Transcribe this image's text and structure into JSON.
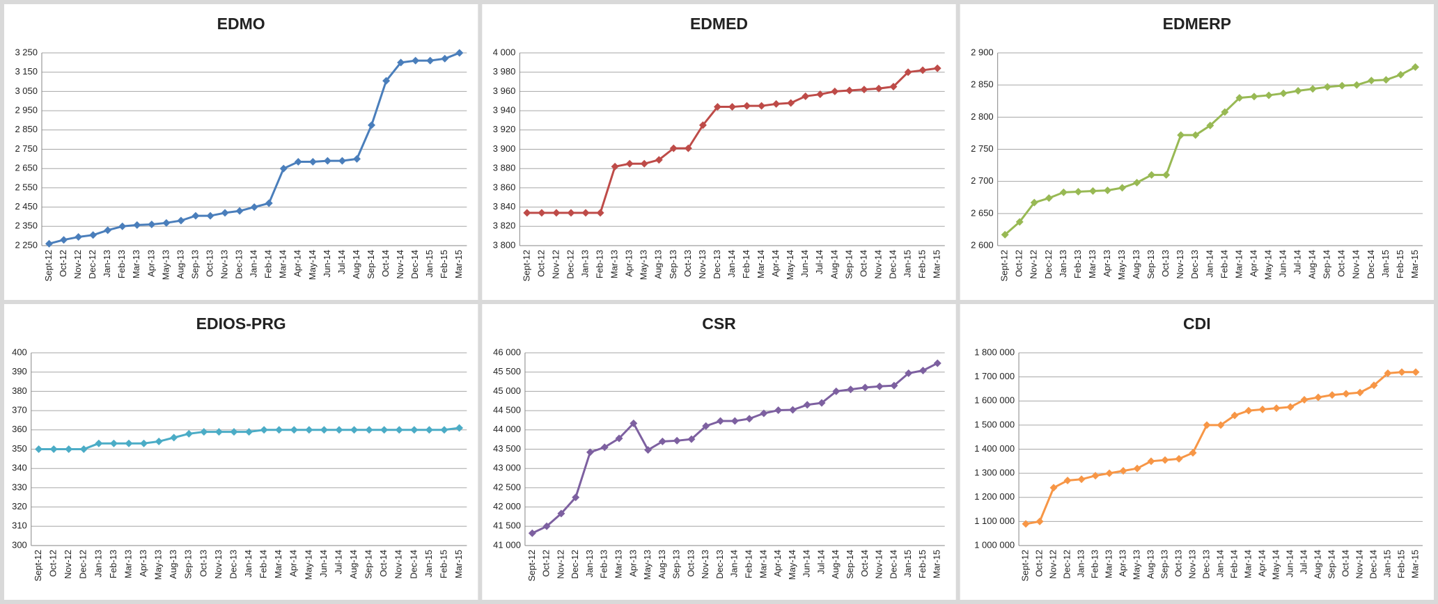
{
  "chart_data": [
    {
      "type": "line",
      "title": "EDMO",
      "color": "#4a7ebb",
      "grid": true,
      "categories": [
        "Sept-12",
        "Oct-12",
        "Nov-12",
        "Dec-12",
        "Jan-13",
        "Feb-13",
        "Mar-13",
        "Apr-13",
        "May-13",
        "Aug-13",
        "Sep-13",
        "Oct-13",
        "Nov-13",
        "Dec-13",
        "Jan-14",
        "Feb-14",
        "Mar-14",
        "Apr-14",
        "May-14",
        "Jun-14",
        "Jul-14",
        "Aug-14",
        "Sep-14",
        "Oct-14",
        "Nov-14",
        "Dec-14",
        "Jan-15",
        "Feb-15",
        "Mar-15"
      ],
      "values": [
        2260,
        2280,
        2295,
        2305,
        2330,
        2350,
        2357,
        2360,
        2368,
        2380,
        2405,
        2405,
        2420,
        2430,
        2450,
        2470,
        2650,
        2685,
        2685,
        2690,
        2690,
        2700,
        2875,
        3105,
        3200,
        3210,
        3210,
        3220,
        3250
      ],
      "ylim": [
        2250,
        3250
      ],
      "yticks": [
        {
          "value": 2250,
          "label": "2 250"
        },
        {
          "value": 2350,
          "label": "2 350"
        },
        {
          "value": 2450,
          "label": "2 450"
        },
        {
          "value": 2550,
          "label": "2 550"
        },
        {
          "value": 2650,
          "label": "2 650"
        },
        {
          "value": 2750,
          "label": "2 750"
        },
        {
          "value": 2850,
          "label": "2 850"
        },
        {
          "value": 2950,
          "label": "2 950"
        },
        {
          "value": 3050,
          "label": "3 050"
        },
        {
          "value": 3150,
          "label": "3 150"
        },
        {
          "value": 3250,
          "label": "3 250"
        }
      ]
    },
    {
      "type": "line",
      "title": "EDMED",
      "color": "#be4b48",
      "grid": true,
      "categories": [
        "Sept-12",
        "Oct-12",
        "Nov-12",
        "Dec-12",
        "Jan-13",
        "Feb-13",
        "Mar-13",
        "Apr-13",
        "May-13",
        "Aug-13",
        "Sep-13",
        "Oct-13",
        "Nov-13",
        "Dec-13",
        "Jan-14",
        "Feb-14",
        "Mar-14",
        "Apr-14",
        "May-14",
        "Jun-14",
        "Jul-14",
        "Aug-14",
        "Sep-14",
        "Oct-14",
        "Nov-14",
        "Dec-14",
        "Jan-15",
        "Feb-15",
        "Mar-15"
      ],
      "values": [
        3834,
        3834,
        3834,
        3834,
        3834,
        3834,
        3882,
        3885,
        3885,
        3889,
        3901,
        3901,
        3925,
        3944,
        3944,
        3945,
        3945,
        3947,
        3948,
        3955,
        3957,
        3960,
        3961,
        3962,
        3963,
        3965,
        3980,
        3982,
        3984
      ],
      "ylim": [
        3800,
        4000
      ],
      "yticks": [
        {
          "value": 3800,
          "label": "3 800"
        },
        {
          "value": 3820,
          "label": "3 820"
        },
        {
          "value": 3840,
          "label": "3 840"
        },
        {
          "value": 3860,
          "label": "3 860"
        },
        {
          "value": 3880,
          "label": "3 880"
        },
        {
          "value": 3900,
          "label": "3 900"
        },
        {
          "value": 3920,
          "label": "3 920"
        },
        {
          "value": 3940,
          "label": "3 940"
        },
        {
          "value": 3960,
          "label": "3 960"
        },
        {
          "value": 3980,
          "label": "3 980"
        },
        {
          "value": 4000,
          "label": "4 000"
        }
      ]
    },
    {
      "type": "line",
      "title": "EDMERP",
      "color": "#98b954",
      "grid": true,
      "categories": [
        "Sept-12",
        "Oct-12",
        "Nov-12",
        "Dec-12",
        "Jan-13",
        "Feb-13",
        "Mar-13",
        "Apr-13",
        "May-13",
        "Aug-13",
        "Sep-13",
        "Oct-13",
        "Nov-13",
        "Dec-13",
        "Jan-14",
        "Feb-14",
        "Mar-14",
        "Apr-14",
        "May-14",
        "Jun-14",
        "Jul-14",
        "Aug-14",
        "Sep-14",
        "Oct-14",
        "Nov-14",
        "Dec-14",
        "Jan-15",
        "Feb-15",
        "Mar-15"
      ],
      "values": [
        2617,
        2637,
        2667,
        2674,
        2683,
        2684,
        2685,
        2686,
        2690,
        2698,
        2710,
        2710,
        2772,
        2772,
        2787,
        2808,
        2830,
        2832,
        2834,
        2837,
        2841,
        2844,
        2847,
        2849,
        2850,
        2857,
        2858,
        2866,
        2878
      ],
      "ylim": [
        2600,
        2900
      ],
      "yticks": [
        {
          "value": 2600,
          "label": "2 600"
        },
        {
          "value": 2650,
          "label": "2 650"
        },
        {
          "value": 2700,
          "label": "2 700"
        },
        {
          "value": 2750,
          "label": "2 750"
        },
        {
          "value": 2800,
          "label": "2 800"
        },
        {
          "value": 2850,
          "label": "2 850"
        },
        {
          "value": 2900,
          "label": "2 900"
        }
      ]
    },
    {
      "type": "line",
      "title": "EDIOS-PRG",
      "color": "#4bacc6",
      "grid": true,
      "categories": [
        "Sept-12",
        "Oct-12",
        "Nov-12",
        "Dec-12",
        "Jan-13",
        "Feb-13",
        "Mar-13",
        "Apr-13",
        "May-13",
        "Aug-13",
        "Sep-13",
        "Oct-13",
        "Nov-13",
        "Dec-13",
        "Jan-14",
        "Feb-14",
        "Mar-14",
        "Apr-14",
        "May-14",
        "Jun-14",
        "Jul-14",
        "Aug-14",
        "Sep-14",
        "Oct-14",
        "Nov-14",
        "Dec-14",
        "Jan-15",
        "Feb-15",
        "Mar-15"
      ],
      "values": [
        350,
        350,
        350,
        350,
        353,
        353,
        353,
        353,
        354,
        356,
        358,
        359,
        359,
        359,
        359,
        360,
        360,
        360,
        360,
        360,
        360,
        360,
        360,
        360,
        360,
        360,
        360,
        360,
        361
      ],
      "ylim": [
        300,
        400
      ],
      "yticks": [
        300,
        310,
        320,
        330,
        340,
        350,
        360,
        370,
        380,
        390,
        400
      ]
    },
    {
      "type": "line",
      "title": "CSR",
      "color": "#7d60a0",
      "grid": true,
      "categories": [
        "Sept-12",
        "Oct-12",
        "Nov-12",
        "Dec-12",
        "Jan-13",
        "Feb-13",
        "Mar-13",
        "Apr-13",
        "May-13",
        "Aug-13",
        "Sep-13",
        "Oct-13",
        "Nov-13",
        "Dec-13",
        "Jan-14",
        "Feb-14",
        "Mar-14",
        "Apr-14",
        "May-14",
        "Jun-14",
        "Jul-14",
        "Aug-14",
        "Sep-14",
        "Oct-14",
        "Nov-14",
        "Dec-14",
        "Jan-15",
        "Feb-15",
        "Mar-15"
      ],
      "values": [
        41320,
        41500,
        41830,
        42250,
        43420,
        43550,
        43780,
        44170,
        43480,
        43700,
        43720,
        43760,
        44100,
        44230,
        44230,
        44290,
        44430,
        44510,
        44520,
        44650,
        44700,
        45000,
        45050,
        45100,
        45130,
        45150,
        45470,
        45540,
        45730
      ],
      "ylim": [
        41000,
        46000
      ],
      "yticks": [
        {
          "value": 41000,
          "label": "41 000"
        },
        {
          "value": 41500,
          "label": "41 500"
        },
        {
          "value": 42000,
          "label": "42 000"
        },
        {
          "value": 42500,
          "label": "42 500"
        },
        {
          "value": 43000,
          "label": "43 000"
        },
        {
          "value": 43500,
          "label": "43 500"
        },
        {
          "value": 44000,
          "label": "44 000"
        },
        {
          "value": 44500,
          "label": "44 500"
        },
        {
          "value": 45000,
          "label": "45 000"
        },
        {
          "value": 45500,
          "label": "45 500"
        },
        {
          "value": 46000,
          "label": "46 000"
        }
      ]
    },
    {
      "type": "line",
      "title": "CDI",
      "color": "#f79646",
      "grid": true,
      "categories": [
        "Sept-12",
        "Oct-12",
        "Nov-12",
        "Dec-12",
        "Jan-13",
        "Feb-13",
        "Mar-13",
        "Apr-13",
        "May-13",
        "Aug-13",
        "Sep-13",
        "Oct-13",
        "Nov-13",
        "Dec-13",
        "Jan-14",
        "Feb-14",
        "Mar-14",
        "Apr-14",
        "May-14",
        "Jun-14",
        "Jul-14",
        "Aug-14",
        "Sep-14",
        "Oct-14",
        "Nov-14",
        "Dec-14",
        "Jan-15",
        "Feb-15",
        "Mar-15"
      ],
      "values": [
        1090000,
        1100000,
        1240000,
        1270000,
        1275000,
        1290000,
        1300000,
        1310000,
        1320000,
        1350000,
        1355000,
        1360000,
        1385000,
        1500000,
        1500000,
        1540000,
        1560000,
        1565000,
        1570000,
        1575000,
        1605000,
        1615000,
        1625000,
        1630000,
        1635000,
        1665000,
        1715000,
        1720000,
        1720000
      ],
      "ylim": [
        1000000,
        1800000
      ],
      "yticks": [
        {
          "value": 1000000,
          "label": "1 000 000"
        },
        {
          "value": 1100000,
          "label": "1 100 000"
        },
        {
          "value": 1200000,
          "label": "1 200 000"
        },
        {
          "value": 1300000,
          "label": "1 300 000"
        },
        {
          "value": 1400000,
          "label": "1 400 000"
        },
        {
          "value": 1500000,
          "label": "1 500 000"
        },
        {
          "value": 1600000,
          "label": "1 600 000"
        },
        {
          "value": 1700000,
          "label": "1 700 000"
        },
        {
          "value": 1800000,
          "label": "1 800 000"
        }
      ]
    }
  ]
}
